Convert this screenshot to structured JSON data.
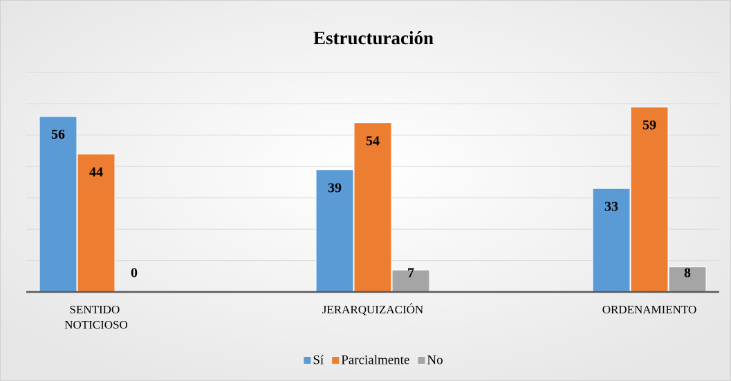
{
  "chart_data": {
    "type": "bar",
    "title": "Estructuración",
    "categories": [
      "SENTIDO NOTICIOSO",
      "JERARQUIZACIÓN",
      "ORDENAMIENTO"
    ],
    "series": [
      {
        "name": "Sí",
        "color": "#5b9bd5",
        "values": [
          56,
          39,
          33
        ]
      },
      {
        "name": "Parcialmente",
        "color": "#ed7d31",
        "values": [
          44,
          54,
          59
        ]
      },
      {
        "name": "No",
        "color": "#a5a5a5",
        "values": [
          0,
          7,
          8
        ]
      }
    ],
    "ylim": [
      0,
      70
    ],
    "yticks": [
      0,
      10,
      20,
      30,
      40,
      50,
      60,
      70
    ],
    "grid": true,
    "legend": "bottom"
  }
}
